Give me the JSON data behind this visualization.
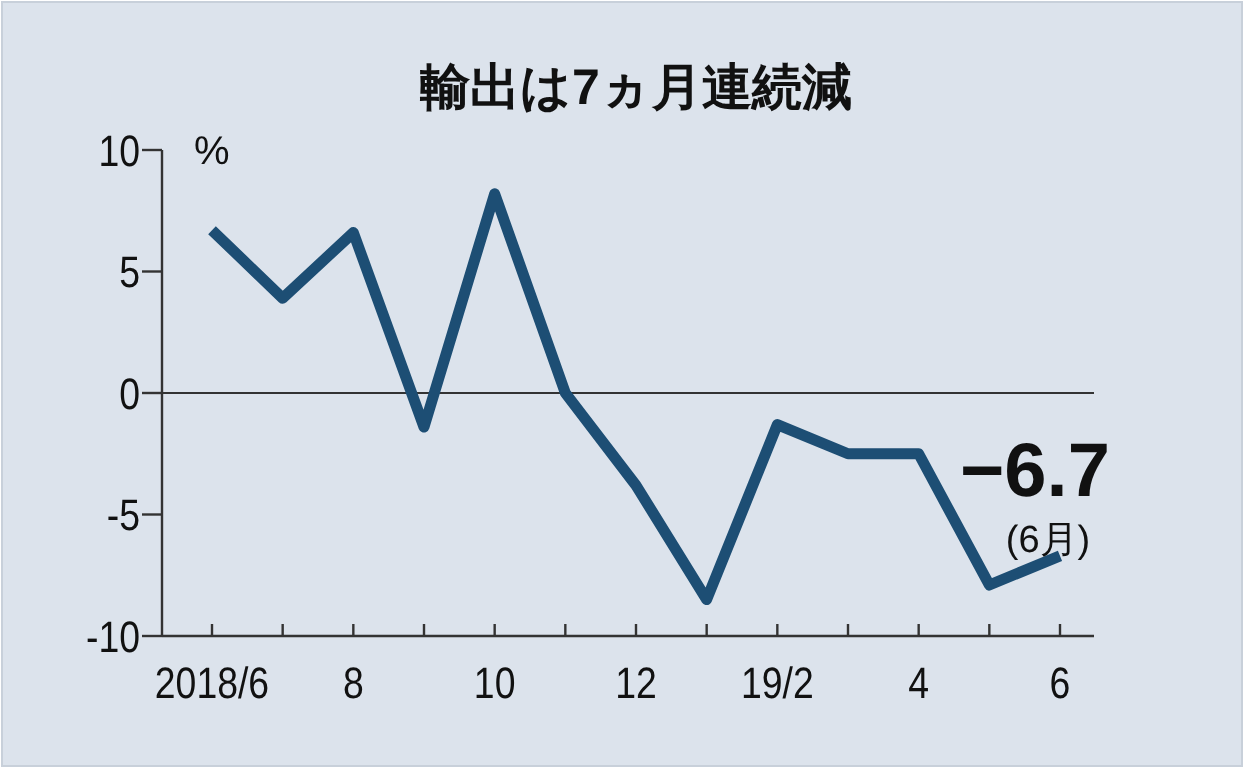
{
  "chart_data": {
    "type": "line",
    "title": "輸出は7ヵ月連続減",
    "ylabel": "%",
    "categories": [
      "2018/6",
      null,
      "8",
      null,
      "10",
      null,
      "12",
      null,
      "19/2",
      null,
      "4",
      null,
      "6"
    ],
    "values": [
      6.7,
      3.9,
      6.6,
      -1.4,
      8.2,
      0.0,
      -3.8,
      -8.5,
      -1.3,
      -2.5,
      -2.5,
      -7.9,
      -6.7
    ],
    "color": "#1d4e74",
    "ylim": [
      -10,
      10
    ],
    "yticks": [
      10,
      5,
      0,
      -5,
      -10
    ],
    "ref_lines": [
      {
        "axis": "y",
        "value": 0,
        "color": "#333333"
      }
    ],
    "annotations": [
      {
        "text": "−6.7",
        "x": "6",
        "y": -6.7
      },
      "(6月)"
    ]
  }
}
